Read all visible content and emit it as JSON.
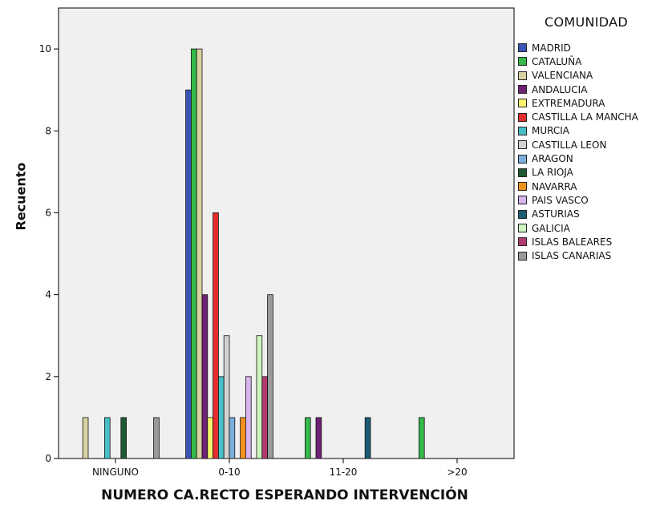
{
  "chart_data": {
    "type": "bar",
    "title": "",
    "xlabel": "NUMERO CA.RECTO ESPERANDO INTERVENCIÓN",
    "ylabel": "Recuento",
    "categories": [
      "NINGUNO",
      "0-10",
      "11-20",
      ">20"
    ],
    "ylim": [
      0,
      11
    ],
    "yticks": [
      0,
      2,
      4,
      6,
      8,
      10
    ],
    "grid": false,
    "legend_title": "COMUNIDAD",
    "legend_position": "right",
    "series": [
      {
        "name": "MADRID",
        "color": "#3a55b5",
        "values": [
          0,
          9,
          0,
          0
        ]
      },
      {
        "name": "CATALUÑA",
        "color": "#35b94a",
        "values": [
          0,
          10,
          1,
          1
        ]
      },
      {
        "name": "VALENCIANA",
        "color": "#d8d2a0",
        "values": [
          1,
          10,
          0,
          0
        ]
      },
      {
        "name": "ANDALUCIA",
        "color": "#6e2276",
        "values": [
          0,
          4,
          1,
          0
        ]
      },
      {
        "name": "EXTREMADURA",
        "color": "#fbf46e",
        "values": [
          0,
          1,
          0,
          0
        ]
      },
      {
        "name": "CASTILLA LA MANCHA",
        "color": "#e52d2d",
        "values": [
          0,
          6,
          0,
          0
        ]
      },
      {
        "name": "MURCIA",
        "color": "#48c0c8",
        "values": [
          1,
          2,
          0,
          0
        ]
      },
      {
        "name": "CASTILLA LEON",
        "color": "#d2d2d2",
        "values": [
          0,
          3,
          0,
          0
        ]
      },
      {
        "name": "ARAGON",
        "color": "#7aaedb",
        "values": [
          0,
          1,
          0,
          0
        ]
      },
      {
        "name": "LA RIOJA",
        "color": "#1d5a32",
        "values": [
          1,
          0,
          0,
          0
        ]
      },
      {
        "name": "NAVARRA",
        "color": "#f2921d",
        "values": [
          0,
          1,
          0,
          0
        ]
      },
      {
        "name": "PAIS VASCO",
        "color": "#d8b4ee",
        "values": [
          0,
          2,
          0,
          0
        ]
      },
      {
        "name": "ASTURIAS",
        "color": "#1d5b74",
        "values": [
          0,
          0,
          1,
          0
        ]
      },
      {
        "name": "GALICIA",
        "color": "#cdf5c0",
        "values": [
          0,
          3,
          0,
          0
        ]
      },
      {
        "name": "ISLAS BALEARES",
        "color": "#b33a70",
        "values": [
          0,
          2,
          0,
          0
        ]
      },
      {
        "name": "ISLAS CANARIAS",
        "color": "#9a9a9a",
        "values": [
          1,
          4,
          0,
          0
        ]
      }
    ]
  }
}
